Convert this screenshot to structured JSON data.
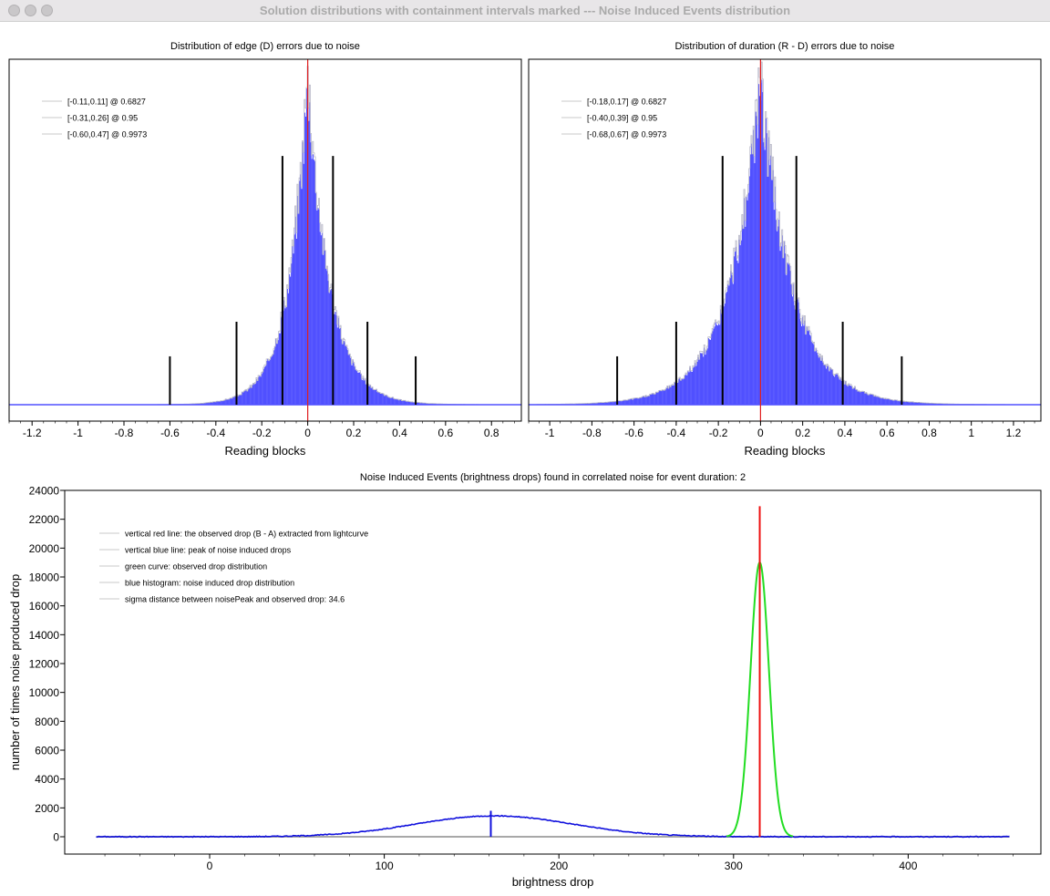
{
  "window": {
    "title": "Solution distributions with containment intervals marked --- Noise Induced Events distribution"
  },
  "chart_data": [
    {
      "type": "bar",
      "title": "Distribution of edge (D) errors due to noise",
      "xlabel": "Reading blocks",
      "xlim": [
        -1.3,
        0.93
      ],
      "xticks": [
        -1.2,
        -1,
        -0.8,
        -0.6,
        -0.4,
        -0.2,
        0,
        0.2,
        0.4,
        0.6,
        0.8
      ],
      "xtick_labels": [
        "-1.2",
        "-1",
        "-0.8",
        "-0.6",
        "-0.4",
        "-0.2",
        "0",
        "0.2",
        "0.4",
        "0.6",
        "0.8"
      ],
      "legend": [
        "[-0.11,0.11] @ 0.6827",
        "[-0.31,0.26] @ 0.95",
        "[-0.60,0.47] @ 0.9973"
      ],
      "legend_position": "top-left",
      "histogram": {
        "shape": "laplace",
        "center": 0,
        "scale_left": 0.085,
        "scale_right": 0.095,
        "peak_fraction": 0.94,
        "color": "#5050ff",
        "outline_color": "#b8b8c8"
      },
      "observed_line": {
        "x": 0,
        "color": "#e02020"
      },
      "intervals": [
        {
          "left": -0.11,
          "right": 0.11,
          "height_fraction": 0.72,
          "color": "#000000"
        },
        {
          "left": -0.31,
          "right": 0.26,
          "height_fraction": 0.24,
          "color": "#000000"
        },
        {
          "left": -0.6,
          "right": 0.47,
          "height_fraction": 0.14,
          "color": "#000000"
        }
      ],
      "grid": false
    },
    {
      "type": "bar",
      "title": "Distribution of duration (R - D) errors due to noise",
      "xlabel": "Reading blocks",
      "xlim": [
        -1.1,
        1.33
      ],
      "xticks": [
        -1,
        -0.8,
        -0.6,
        -0.4,
        -0.2,
        0,
        0.2,
        0.4,
        0.6,
        0.8,
        1,
        1.2
      ],
      "xtick_labels": [
        "-1",
        "-0.8",
        "-0.6",
        "-0.4",
        "-0.2",
        "0",
        "0.2",
        "0.4",
        "0.6",
        "0.8",
        "1",
        "1.2"
      ],
      "legend": [
        "[-0.18,0.17] @ 0.6827",
        "[-0.40,0.39] @ 0.95",
        "[-0.68,0.67] @ 0.9973"
      ],
      "legend_position": "top-left",
      "histogram": {
        "shape": "laplace",
        "center": 0,
        "scale_left": 0.15,
        "scale_right": 0.15,
        "peak_fraction": 0.92,
        "color": "#5050ff",
        "outline_color": "#b8b8c8"
      },
      "observed_line": {
        "x": 0,
        "color": "#e02020"
      },
      "intervals": [
        {
          "left": -0.18,
          "right": 0.17,
          "height_fraction": 0.72,
          "color": "#000000"
        },
        {
          "left": -0.4,
          "right": 0.39,
          "height_fraction": 0.24,
          "color": "#000000"
        },
        {
          "left": -0.68,
          "right": 0.67,
          "height_fraction": 0.14,
          "color": "#000000"
        }
      ],
      "grid": false
    },
    {
      "type": "line",
      "title": "Noise Induced Events (brightness drops) found in correlated noise for event duration: 2",
      "xlabel": "brightness drop",
      "ylabel": "number of times noise produced drop",
      "xlim": [
        -83,
        476
      ],
      "ylim": [
        -1200,
        24000
      ],
      "xticks": [
        0,
        100,
        200,
        300,
        400
      ],
      "xtick_labels": [
        "0",
        "100",
        "200",
        "300",
        "400"
      ],
      "yticks": [
        0,
        2000,
        4000,
        6000,
        8000,
        10000,
        12000,
        14000,
        16000,
        18000,
        20000,
        22000,
        24000
      ],
      "ytick_labels": [
        "0",
        "2000",
        "4000",
        "6000",
        "8000",
        "10000",
        "12000",
        "14000",
        "16000",
        "18000",
        "20000",
        "22000",
        "24000"
      ],
      "legend": [
        "vertical red line: the observed drop (B - A) extracted from lightcurve",
        "vertical blue line: peak of noise induced drops",
        "green curve: observed drop distribution",
        "blue histogram: noise induced drop distribution",
        "sigma distance between noisePeak and observed drop: 34.6"
      ],
      "legend_position": "top-left",
      "series": [
        {
          "kind": "gaussian",
          "mean": 163,
          "sigma": 45,
          "peak": 1450,
          "x_range": [
            -65,
            458
          ],
          "color": "#1010dd"
        },
        {
          "kind": "gaussian",
          "mean": 315,
          "sigma": 5.3,
          "peak": 19000,
          "x_range": [
            296,
            334
          ],
          "color": "#22dd22"
        }
      ],
      "baseline": {
        "x_range": [
          -65,
          458
        ],
        "y": 0,
        "color": "#a8a8a8"
      },
      "vlines": [
        {
          "x": 315,
          "y0": 0,
          "y1": 22900,
          "color": "#ee1111"
        },
        {
          "x": 161,
          "y0": 0,
          "y1": 1800,
          "color": "#1010dd"
        }
      ],
      "grid": false
    }
  ]
}
